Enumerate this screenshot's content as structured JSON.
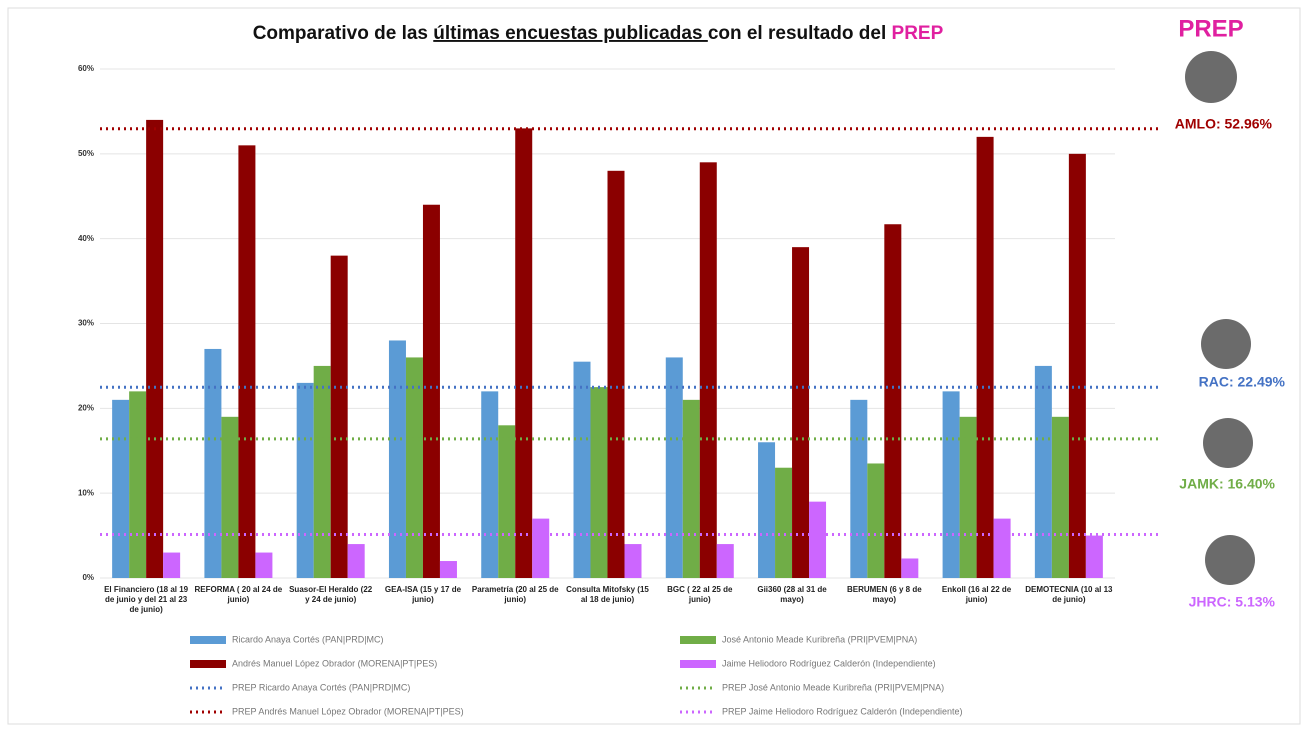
{
  "chart_data": {
    "type": "bar",
    "title": [
      "Comparativo de las ",
      "últimas encuestas publicadas ",
      "con el resultado del ",
      "PREP"
    ],
    "side_title": "PREP",
    "categories": [
      "El Financiero (18 al 19 de junio y del 21 al 23 de junio)",
      "REFORMA ( 20 al 24 de junio)",
      "Suasor-El Heraldo (22 y 24 de junio)",
      "GEA-ISA (15 y 17 de junio)",
      "Parametría (20 al 25 de junio)",
      "Consulta Mitofsky (15 al 18 de junio)",
      "BGC ( 22 al 25 de junio)",
      "Gii360 (28 al 31 de mayo)",
      "BERUMEN (6 y 8 de mayo)",
      "Enkoll (16 al 22 de junio)",
      "DEMOTECNIA (10 al 13 de junio)"
    ],
    "series": [
      {
        "name": "Ricardo Anaya Cortés (PAN|PRD|MC)",
        "color": "#5b9bd5",
        "values": [
          21,
          27,
          23,
          28,
          22,
          25.5,
          26,
          16,
          21,
          22,
          25
        ]
      },
      {
        "name": "José Antonio Meade Kuribreña (PRI|PVEM|PNA)",
        "color": "#70ad47",
        "values": [
          22,
          19,
          25,
          26,
          18,
          22.5,
          21,
          13,
          13.5,
          19,
          19
        ]
      },
      {
        "name": "Andrés Manuel López Obrador (MORENA|PT|PES)",
        "color": "#8b0000",
        "values": [
          54,
          51,
          38,
          44,
          53,
          48,
          49,
          39,
          41.7,
          52,
          50
        ]
      },
      {
        "name": "Jaime Heliodoro Rodríguez Calderón (Independiente)",
        "color": "#cc66ff",
        "values": [
          3,
          3,
          4,
          2,
          7,
          4,
          4,
          9,
          2.3,
          7,
          5
        ]
      }
    ],
    "prep": [
      {
        "name": "PREP Ricardo Anaya Cortés (PAN|PRD|MC)",
        "color": "#4472c4",
        "value": 22.49,
        "value_label": "RAC: 22.49%"
      },
      {
        "name": "PREP José Antonio Meade Kuribreña (PRI|PVEM|PNA)",
        "color": "#70ad47",
        "value": 16.4,
        "value_label": "JAMK: 16.40%"
      },
      {
        "name": "PREP Andrés Manuel López Obrador (MORENA|PT|PES)",
        "color": "#a00000",
        "value": 52.96,
        "value_label": "AMLO: 52.96%"
      },
      {
        "name": "PREP Jaime Heliodoro Rodríguez Calderón (Independiente)",
        "color": "#cc66ff",
        "value": 5.13,
        "value_label": "JHRC: 5.13%"
      }
    ],
    "ylim": [
      0,
      60
    ],
    "yticks": [
      {
        "value": 0,
        "label": "0%"
      },
      {
        "value": 10,
        "label": "10%"
      },
      {
        "value": 20,
        "label": "20%"
      },
      {
        "value": 30,
        "label": "30%"
      },
      {
        "value": 40,
        "label": "40%"
      },
      {
        "value": 50,
        "label": "50%"
      },
      {
        "value": 60,
        "label": "60%"
      }
    ],
    "grid": true
  }
}
